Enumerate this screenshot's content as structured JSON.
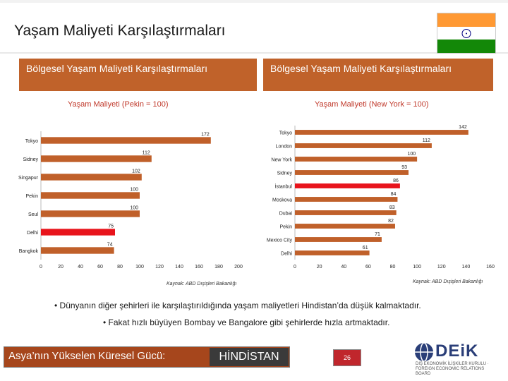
{
  "page": {
    "title": "Yaşam Maliyeti Karşılaştırmaları",
    "page_number": "26",
    "footer_left": "Asya’nın Yükselen Küresel Gücü:",
    "footer_right": "HİNDİSTAN",
    "note1": "• Dünyanın diğer şehirleri ile karşılaştırıldığında yaşam maliyetleri Hindistan’da düşük kalmaktadır.",
    "note2": "• Fakat hızlı büyüyen Bombay ve Bangalore gibi şehirlerde hızla artmaktadır.",
    "logo_text": "DEiK",
    "logo_subtitle": "DIŞ EKONOMİK İLİŞKİLER KURULU · FOREIGN ECONOMIC RELATIONS BOARD",
    "flag": {
      "top": "#ff9933",
      "middle": "#ffffff",
      "bottom": "#138808",
      "wheel": "#000080"
    }
  },
  "colors": {
    "bar": "#c0602a",
    "bar_highlight": "#e8141c",
    "banner": "#c0622a",
    "subtitle": "#c0392b"
  },
  "chart_data": [
    {
      "type": "bar",
      "orientation": "horizontal",
      "banner": "Bölgesel Yaşam Maliyeti Karşılaştırmaları",
      "title": "Yaşam Maliyeti (Pekin = 100)",
      "categories": [
        "Tokyo",
        "Sidney",
        "Singapur",
        "Pekin",
        "Seul",
        "Delhi",
        "Bangkok"
      ],
      "values": [
        172,
        112,
        102,
        100,
        100,
        75,
        74
      ],
      "highlight": "Delhi",
      "xlim": [
        0,
        200
      ],
      "xticks": [
        0,
        20,
        40,
        60,
        80,
        100,
        120,
        140,
        160,
        180,
        200
      ],
      "source": "Kaynak: ABD Dışişleri Bakanlığı"
    },
    {
      "type": "bar",
      "orientation": "horizontal",
      "banner": "Bölgesel Yaşam Maliyeti Karşılaştırmaları",
      "title": "Yaşam Maliyeti (New York = 100)",
      "categories": [
        "Tokyo",
        "London",
        "New York",
        "Sidney",
        "İstanbul",
        "Moskova",
        "Dubai",
        "Pekin",
        "Mexico City",
        "Delhi"
      ],
      "values": [
        142,
        112,
        100,
        93,
        86,
        84,
        83,
        82,
        71,
        61
      ],
      "highlight": "İstanbul",
      "xlim": [
        0,
        160
      ],
      "xticks": [
        0,
        20,
        40,
        60,
        80,
        100,
        120,
        140,
        160
      ],
      "source": "Kaynak: ABD Dışişleri Bakanlığı"
    }
  ]
}
